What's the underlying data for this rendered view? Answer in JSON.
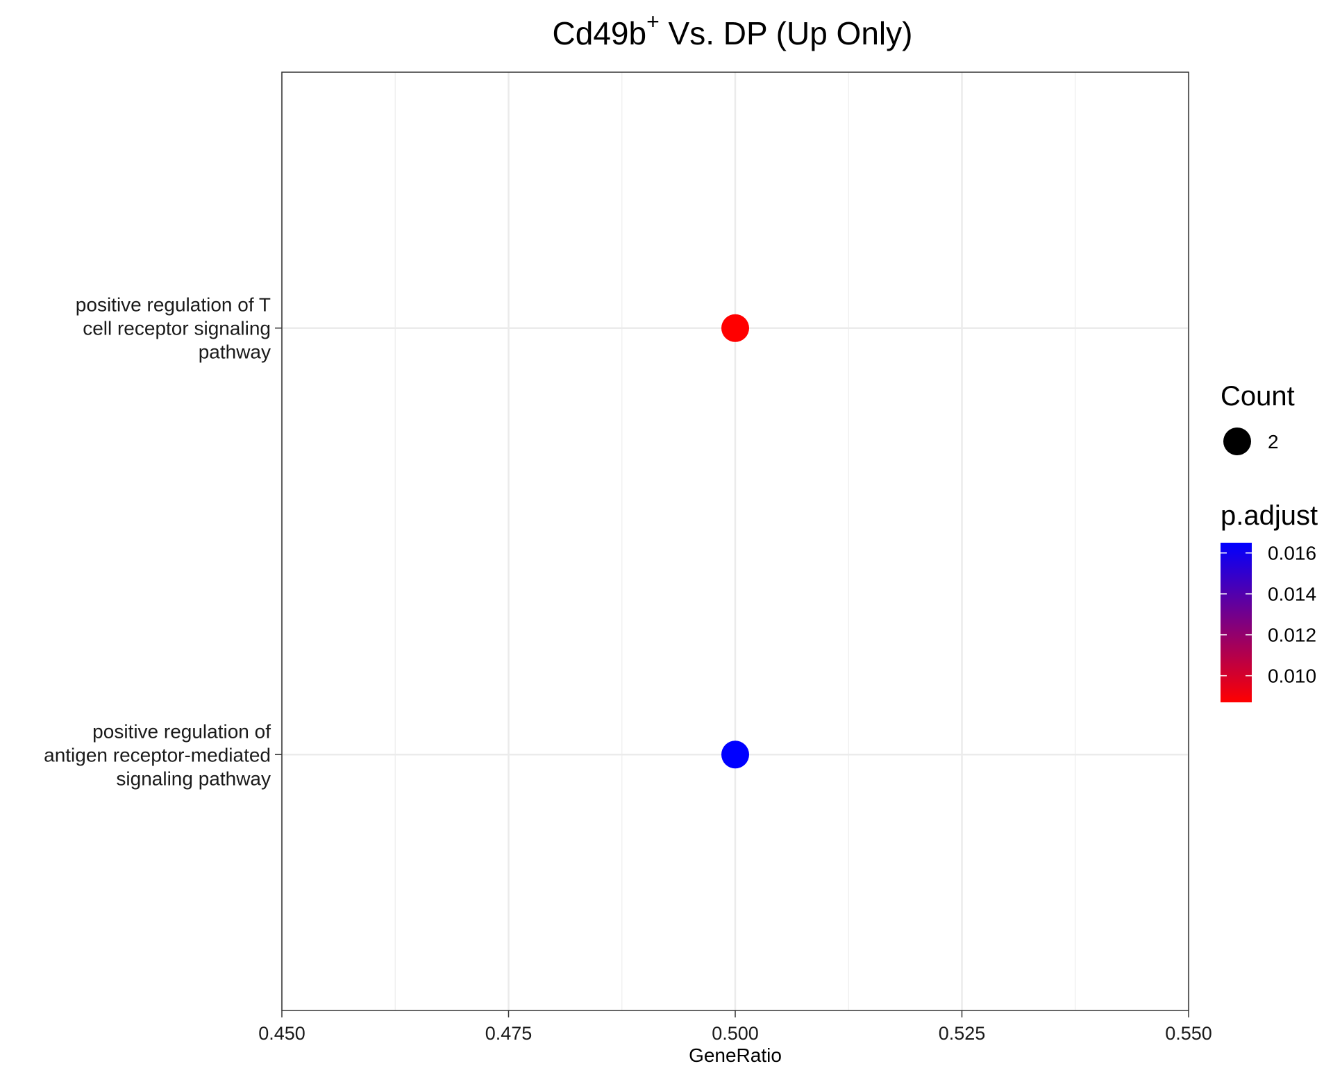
{
  "chart_data": {
    "type": "scatter",
    "title": {
      "main": "Cd49b",
      "superscript": "+",
      "rest": " Vs. DP (Up Only)"
    },
    "xlabel": "GeneRatio",
    "ylabel": "",
    "xlim": [
      0.45,
      0.55
    ],
    "x_ticks": [
      0.45,
      0.475,
      0.5,
      0.525,
      0.55
    ],
    "x_tick_labels": [
      "0.450",
      "0.475",
      "0.500",
      "0.525",
      "0.550"
    ],
    "categories": [
      [
        "positive regulation of T",
        "cell receptor signaling",
        "pathway"
      ],
      [
        "positive regulation of",
        "antigen receptor-mediated",
        "signaling pathway"
      ]
    ],
    "points": [
      {
        "category_index": 0,
        "x": 0.5,
        "count": 2,
        "p_adjust": 0.0087,
        "color": "#ff0000"
      },
      {
        "category_index": 1,
        "x": 0.5,
        "count": 2,
        "p_adjust": 0.0165,
        "color": "#0000ff"
      }
    ],
    "grid": true,
    "legend": {
      "placement": "right",
      "size_title": "Count",
      "size_entries": [
        "2"
      ],
      "color_title": "p.adjust",
      "color_low": "#ff0000",
      "color_high": "#0000ff",
      "color_range": [
        0.0087,
        0.0165
      ],
      "color_ticks": [
        0.016,
        0.014,
        0.012,
        0.01
      ],
      "color_tick_labels": [
        "0.016",
        "0.014",
        "0.012",
        "0.010"
      ]
    }
  }
}
